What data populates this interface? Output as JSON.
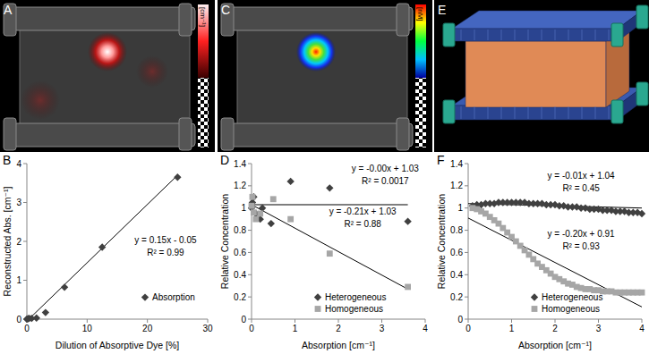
{
  "images": [
    {
      "label": "A",
      "colorbar_label": "[cm⁻¹]"
    },
    {
      "label": "C",
      "colorbar_label": "[nM]"
    },
    {
      "label": "E"
    }
  ],
  "chart_data": [
    {
      "type": "scatter",
      "panel_label": "B",
      "x_label": "Dilution of Absorptive Dye [%]",
      "y_label": "Reconstructed Abs. [cm⁻¹]",
      "xlim": [
        0,
        30
      ],
      "xticks": [
        0,
        10,
        20,
        30
      ],
      "ylim": [
        0,
        4
      ],
      "yticks": [
        0,
        1,
        2,
        3,
        4
      ],
      "grid": false,
      "legend": "right",
      "series": [
        {
          "name": "Absorption",
          "color": "#404040",
          "marker": "diamond",
          "x": [
            0,
            0.2,
            0.4,
            0.8,
            1.6,
            3.1,
            6.25,
            12.5,
            25
          ],
          "values": [
            0,
            0.01,
            0.02,
            0.02,
            0.03,
            0.17,
            0.82,
            1.85,
            3.65
          ]
        }
      ],
      "trendlines": [
        {
          "color": "#000000",
          "x": [
            0,
            25
          ],
          "values": [
            -0.05,
            3.7
          ],
          "equation": "y = 0.15x - 0.05",
          "r_squared": "R² = 0.99"
        }
      ]
    },
    {
      "type": "scatter",
      "panel_label": "D",
      "x_label": "Absorption [cm⁻¹]",
      "y_label": "Relative Concentration",
      "xlim": [
        0,
        4
      ],
      "xticks": [
        0,
        1,
        2,
        3,
        4
      ],
      "ylim": [
        0,
        1.4
      ],
      "yticks": [
        0,
        0.2,
        0.4,
        0.6,
        0.8,
        1,
        1.2,
        1.4
      ],
      "grid": false,
      "legend": "lower right",
      "series": [
        {
          "name": "Heterogeneous",
          "color": "#404040",
          "marker": "diamond",
          "x": [
            0,
            0.02,
            0.05,
            0.1,
            0.2,
            0.25,
            0.45,
            0.9,
            1.8,
            3.6
          ],
          "values": [
            1.0,
            1.05,
            1.1,
            0.95,
            0.9,
            1.0,
            0.86,
            1.24,
            1.18,
            0.88
          ]
        },
        {
          "name": "Homogeneous",
          "color": "#a6a6a6",
          "marker": "square",
          "x": [
            0,
            0.02,
            0.05,
            0.1,
            0.2,
            0.5,
            0.9,
            1.8,
            3.6
          ],
          "values": [
            1.02,
            1.1,
            0.96,
            0.9,
            0.95,
            1.08,
            0.9,
            0.59,
            0.29
          ]
        }
      ],
      "trendlines": [
        {
          "color": "#000000",
          "x": [
            0,
            3.6
          ],
          "values": [
            1.03,
            1.03
          ],
          "equation": "y = -0.00x + 1.03",
          "r_squared": "R² = 0.0017"
        },
        {
          "color": "#000000",
          "x": [
            0,
            3.6
          ],
          "values": [
            1.03,
            0.27
          ],
          "equation": "y = -0.21x + 1.03",
          "r_squared": "R² = 0.88"
        }
      ]
    },
    {
      "type": "scatter",
      "panel_label": "F",
      "x_label": "Absorption [cm⁻¹]",
      "y_label": "Relative Concentration",
      "xlim": [
        0,
        4
      ],
      "xticks": [
        0,
        1,
        2,
        3,
        4
      ],
      "ylim": [
        0,
        1.4
      ],
      "yticks": [
        0,
        0.2,
        0.4,
        0.6,
        0.8,
        1,
        1.2,
        1.4
      ],
      "grid": false,
      "legend": "lower right",
      "series": [
        {
          "name": "Heterogeneous",
          "color": "#404040",
          "marker": "diamond",
          "x": [
            0.1,
            0.2,
            0.3,
            0.4,
            0.5,
            0.6,
            0.7,
            0.8,
            0.9,
            1.0,
            1.1,
            1.2,
            1.3,
            1.4,
            1.5,
            1.6,
            1.7,
            1.8,
            1.9,
            2.0,
            2.1,
            2.2,
            2.3,
            2.4,
            2.5,
            2.6,
            2.7,
            2.8,
            2.9,
            3.0,
            3.1,
            3.2,
            3.3,
            3.4,
            3.5,
            3.6,
            3.7,
            3.8,
            3.9,
            4.0
          ],
          "values": [
            1.02,
            1.03,
            1.03,
            1.04,
            1.04,
            1.04,
            1.05,
            1.05,
            1.05,
            1.05,
            1.05,
            1.05,
            1.05,
            1.04,
            1.04,
            1.04,
            1.04,
            1.03,
            1.03,
            1.03,
            1.02,
            1.02,
            1.01,
            1.01,
            1.01,
            1.0,
            1.0,
            0.99,
            0.99,
            0.99,
            0.98,
            0.98,
            0.98,
            0.97,
            0.97,
            0.97,
            0.96,
            0.96,
            0.96,
            0.95
          ]
        },
        {
          "name": "Homogeneous",
          "color": "#a6a6a6",
          "marker": "square",
          "x": [
            0.1,
            0.2,
            0.3,
            0.4,
            0.5,
            0.6,
            0.7,
            0.8,
            0.9,
            1.0,
            1.1,
            1.2,
            1.3,
            1.4,
            1.5,
            1.6,
            1.7,
            1.8,
            1.9,
            2.0,
            2.1,
            2.2,
            2.3,
            2.4,
            2.5,
            2.6,
            2.7,
            2.8,
            2.9,
            3.0,
            3.1,
            3.2,
            3.3,
            3.4,
            3.5,
            3.6,
            3.7,
            3.8,
            3.9,
            4.0
          ],
          "values": [
            1.0,
            0.99,
            0.97,
            0.95,
            0.92,
            0.89,
            0.86,
            0.82,
            0.78,
            0.74,
            0.7,
            0.66,
            0.62,
            0.58,
            0.54,
            0.5,
            0.47,
            0.44,
            0.41,
            0.38,
            0.36,
            0.34,
            0.32,
            0.31,
            0.29,
            0.28,
            0.27,
            0.27,
            0.26,
            0.26,
            0.25,
            0.25,
            0.25,
            0.24,
            0.24,
            0.24,
            0.24,
            0.24,
            0.24,
            0.24
          ]
        }
      ],
      "trendlines": [
        {
          "color": "#000000",
          "x": [
            0,
            4
          ],
          "values": [
            1.04,
            1.0
          ],
          "equation": "y = -0.01x + 1.04",
          "r_squared": "R² = 0.45"
        },
        {
          "color": "#000000",
          "x": [
            0,
            4
          ],
          "values": [
            0.91,
            0.11
          ],
          "equation": "y = -0.20x + 0.91",
          "r_squared": "R² = 0.93"
        }
      ]
    }
  ]
}
